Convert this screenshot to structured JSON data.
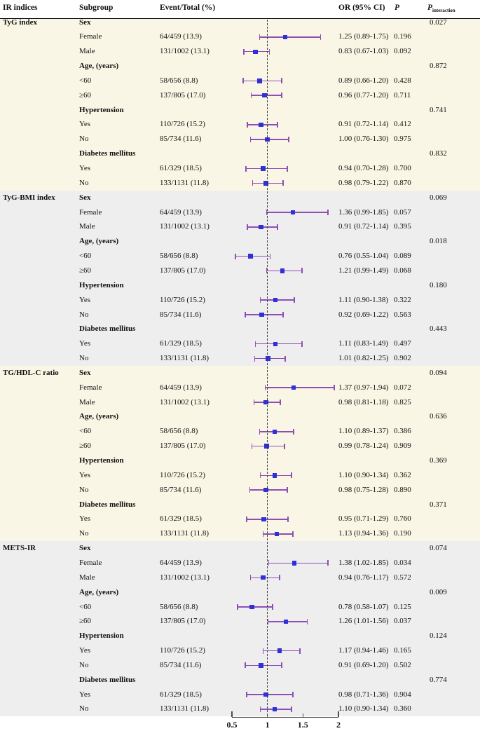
{
  "figure": {
    "header": {
      "col_ir_indices": "IR indices",
      "col_subgroup": "Subgroup",
      "col_event_total": "Event/Total (%)",
      "col_or_ci": "OR (95% CI)",
      "col_p": "P",
      "col_p_interaction_main": "P",
      "col_p_interaction_sub": "interaction"
    },
    "colors": {
      "section_bg_cream": "#faf6e5",
      "section_bg_gray": "#efeeef",
      "error_bar_purple": "#8e4fb5",
      "marker_blue": "#3030d8",
      "reference_line": "#3c3c3c",
      "header_rule": "#000000"
    }
  },
  "chart_data": {
    "type": "forest",
    "title": "Subgroup analysis forest plot of IR indices",
    "x_axis": {
      "scale": "linear",
      "xlim": [
        0.5,
        2
      ],
      "ticks": [
        0.5,
        1,
        1.5,
        2
      ],
      "tick_labels": [
        "0.5",
        "1",
        "1.5",
        "2"
      ],
      "reference_line": 1
    },
    "columns": [
      "IR indices",
      "Subgroup",
      "Event/Total (%)",
      "OR (95% CI)",
      "P",
      "P interaction"
    ],
    "sections": [
      {
        "index": "TyG index",
        "groups": [
          {
            "label": "Sex",
            "p_interaction": "0.027",
            "rows": [
              {
                "label": "Female",
                "event": "64/459 (13.9)",
                "or": 1.25,
                "lo": 0.89,
                "hi": 1.75,
                "or_text": "1.25 (0.89-1.75)",
                "p": "0.196"
              },
              {
                "label": "Male",
                "event": "131/1002 (13.1)",
                "or": 0.83,
                "lo": 0.67,
                "hi": 1.03,
                "or_text": "0.83 (0.67-1.03)",
                "p": "0.092"
              }
            ]
          },
          {
            "label": "Age, (years)",
            "p_interaction": "0.872",
            "rows": [
              {
                "label": "<60",
                "event": "58/656 (8.8)",
                "or": 0.89,
                "lo": 0.66,
                "hi": 1.2,
                "or_text": "0.89 (0.66-1.20)",
                "p": "0.428"
              },
              {
                "label": "≥60",
                "event": "137/805 (17.0)",
                "or": 0.96,
                "lo": 0.77,
                "hi": 1.2,
                "or_text": "0.96 (0.77-1.20)",
                "p": "0.711"
              }
            ]
          },
          {
            "label": "Hypertension",
            "p_interaction": "0.741",
            "rows": [
              {
                "label": "Yes",
                "event": "110/726 (15.2)",
                "or": 0.91,
                "lo": 0.72,
                "hi": 1.14,
                "or_text": "0.91 (0.72-1.14)",
                "p": "0.412"
              },
              {
                "label": "No",
                "event": "85/734 (11.6)",
                "or": 1.0,
                "lo": 0.76,
                "hi": 1.3,
                "or_text": "1.00 (0.76-1.30)",
                "p": "0.975"
              }
            ]
          },
          {
            "label": "Diabetes mellitus",
            "p_interaction": "0.832",
            "rows": [
              {
                "label": "Yes",
                "event": "61/329 (18.5)",
                "or": 0.94,
                "lo": 0.7,
                "hi": 1.28,
                "or_text": "0.94 (0.70-1.28)",
                "p": "0.700"
              },
              {
                "label": "No",
                "event": "133/1131 (11.8)",
                "or": 0.98,
                "lo": 0.79,
                "hi": 1.22,
                "or_text": "0.98 (0.79-1.22)",
                "p": "0.870"
              }
            ]
          }
        ]
      },
      {
        "index": "TyG-BMI index",
        "groups": [
          {
            "label": "Sex",
            "p_interaction": "0.069",
            "rows": [
              {
                "label": "Female",
                "event": "64/459 (13.9)",
                "or": 1.36,
                "lo": 0.99,
                "hi": 1.85,
                "or_text": "1.36 (0.99-1.85)",
                "p": "0.057"
              },
              {
                "label": "Male",
                "event": "131/1002 (13.1)",
                "or": 0.91,
                "lo": 0.72,
                "hi": 1.14,
                "or_text": "0.91 (0.72-1.14)",
                "p": "0.395"
              }
            ]
          },
          {
            "label": "Age, (years)",
            "p_interaction": "0.018",
            "rows": [
              {
                "label": "<60",
                "event": "58/656 (8.8)",
                "or": 0.76,
                "lo": 0.55,
                "hi": 1.04,
                "or_text": "0.76 (0.55-1.04)",
                "p": "0.089"
              },
              {
                "label": "≥60",
                "event": "137/805 (17.0)",
                "or": 1.21,
                "lo": 0.99,
                "hi": 1.49,
                "or_text": "1.21 (0.99-1.49)",
                "p": "0.068"
              }
            ]
          },
          {
            "label": "Hypertension",
            "p_interaction": "0.180",
            "rows": [
              {
                "label": "Yes",
                "event": "110/726 (15.2)",
                "or": 1.11,
                "lo": 0.9,
                "hi": 1.38,
                "or_text": "1.11 (0.90-1.38)",
                "p": "0.322"
              },
              {
                "label": "No",
                "event": "85/734 (11.6)",
                "or": 0.92,
                "lo": 0.69,
                "hi": 1.22,
                "or_text": "0.92 (0.69-1.22)",
                "p": "0.563"
              }
            ]
          },
          {
            "label": "Diabetes mellitus",
            "p_interaction": "0.443",
            "rows": [
              {
                "label": "Yes",
                "event": "61/329 (18.5)",
                "or": 1.11,
                "lo": 0.83,
                "hi": 1.49,
                "or_text": "1.11 (0.83-1.49)",
                "p": "0.497"
              },
              {
                "label": "No",
                "event": "133/1131 (11.8)",
                "or": 1.01,
                "lo": 0.82,
                "hi": 1.25,
                "or_text": "1.01 (0.82-1.25)",
                "p": "0.902"
              }
            ]
          }
        ]
      },
      {
        "index": "TG/HDL-C ratio",
        "groups": [
          {
            "label": "Sex",
            "p_interaction": "0.094",
            "rows": [
              {
                "label": "Female",
                "event": "64/459 (13.9)",
                "or": 1.37,
                "lo": 0.97,
                "hi": 1.94,
                "or_text": "1.37 (0.97-1.94)",
                "p": "0.072"
              },
              {
                "label": "Male",
                "event": "131/1002 (13.1)",
                "or": 0.98,
                "lo": 0.81,
                "hi": 1.18,
                "or_text": "0.98 (0.81-1.18)",
                "p": "0.825"
              }
            ]
          },
          {
            "label": "Age, (years)",
            "p_interaction": "0.636",
            "rows": [
              {
                "label": "<60",
                "event": "58/656 (8.8)",
                "or": 1.1,
                "lo": 0.89,
                "hi": 1.37,
                "or_text": "1.10 (0.89-1.37)",
                "p": "0.386"
              },
              {
                "label": "≥60",
                "event": "137/805 (17.0)",
                "or": 0.99,
                "lo": 0.78,
                "hi": 1.24,
                "or_text": "0.99 (0.78-1.24)",
                "p": "0.909"
              }
            ]
          },
          {
            "label": "Hypertension",
            "p_interaction": "0.369",
            "rows": [
              {
                "label": "Yes",
                "event": "110/726 (15.2)",
                "or": 1.1,
                "lo": 0.9,
                "hi": 1.34,
                "or_text": "1.10 (0.90-1.34)",
                "p": "0.362"
              },
              {
                "label": "No",
                "event": "85/734 (11.6)",
                "or": 0.98,
                "lo": 0.75,
                "hi": 1.28,
                "or_text": "0.98 (0.75-1.28)",
                "p": "0.890"
              }
            ]
          },
          {
            "label": "Diabetes mellitus",
            "p_interaction": "0.371",
            "rows": [
              {
                "label": "Yes",
                "event": "61/329 (18.5)",
                "or": 0.95,
                "lo": 0.71,
                "hi": 1.29,
                "or_text": "0.95 (0.71-1.29)",
                "p": "0.760"
              },
              {
                "label": "No",
                "event": "133/1131 (11.8)",
                "or": 1.13,
                "lo": 0.94,
                "hi": 1.36,
                "or_text": "1.13 (0.94-1.36)",
                "p": "0.190"
              }
            ]
          }
        ]
      },
      {
        "index": "METS-IR",
        "groups": [
          {
            "label": "Sex",
            "p_interaction": "0.074",
            "rows": [
              {
                "label": "Female",
                "event": "64/459 (13.9)",
                "or": 1.38,
                "lo": 1.02,
                "hi": 1.85,
                "or_text": "1.38 (1.02-1.85)",
                "p": "0.034"
              },
              {
                "label": "Male",
                "event": "131/1002 (13.1)",
                "or": 0.94,
                "lo": 0.76,
                "hi": 1.17,
                "or_text": "0.94 (0.76-1.17)",
                "p": "0.572"
              }
            ]
          },
          {
            "label": "Age, (years)",
            "p_interaction": "0.009",
            "rows": [
              {
                "label": "<60",
                "event": "58/656 (8.8)",
                "or": 0.78,
                "lo": 0.58,
                "hi": 1.07,
                "or_text": "0.78 (0.58-1.07)",
                "p": "0.125"
              },
              {
                "label": "≥60",
                "event": "137/805 (17.0)",
                "or": 1.26,
                "lo": 1.01,
                "hi": 1.56,
                "or_text": "1.26 (1.01-1.56)",
                "p": "0.037"
              }
            ]
          },
          {
            "label": "Hypertension",
            "p_interaction": "0.124",
            "rows": [
              {
                "label": "Yes",
                "event": "110/726 (15.2)",
                "or": 1.17,
                "lo": 0.94,
                "hi": 1.46,
                "or_text": "1.17 (0.94-1.46)",
                "p": "0.165"
              },
              {
                "label": "No",
                "event": "85/734 (11.6)",
                "or": 0.91,
                "lo": 0.69,
                "hi": 1.2,
                "or_text": "0.91 (0.69-1.20)",
                "p": "0.502"
              }
            ]
          },
          {
            "label": "Diabetes mellitus",
            "p_interaction": "0.774",
            "rows": [
              {
                "label": "Yes",
                "event": "61/329 (18.5)",
                "or": 0.98,
                "lo": 0.71,
                "hi": 1.36,
                "or_text": "0.98 (0.71-1.36)",
                "p": "0.904"
              },
              {
                "label": "No",
                "event": "133/1131 (11.8)",
                "or": 1.1,
                "lo": 0.9,
                "hi": 1.34,
                "or_text": "1.10 (0.90-1.34)",
                "p": "0.360"
              }
            ]
          }
        ]
      }
    ]
  }
}
